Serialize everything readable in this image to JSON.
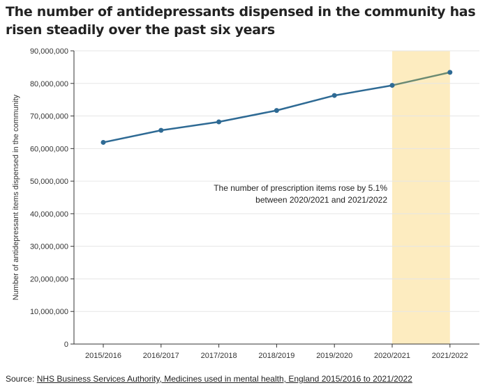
{
  "chart_data": {
    "type": "line",
    "title": "The number of antidepressants dispensed in the community has risen steadily over the past six years",
    "categories": [
      "2015/2016",
      "2016/2017",
      "2017/2018",
      "2018/2019",
      "2019/2020",
      "2020/2021",
      "2021/2022"
    ],
    "series": [
      {
        "values": [
          61900000,
          65600000,
          68200000,
          71700000,
          76300000,
          79400000,
          83400000
        ]
      }
    ],
    "ylabel": "Number of antidepressant items dispensed in the community",
    "xlabel": "",
    "ylim": [
      0,
      90000000
    ],
    "yticks": [
      0,
      10000000,
      20000000,
      30000000,
      40000000,
      50000000,
      60000000,
      70000000,
      80000000,
      90000000
    ],
    "ytick_labels": [
      "0",
      "10,000,000",
      "20,000,000",
      "30,000,000",
      "40,000,000",
      "50,000,000",
      "60,000,000",
      "70,000,000",
      "80,000,000",
      "90,000,000"
    ],
    "highlight": {
      "from": "2020/2021",
      "to": "2021/2022",
      "color": "#fdecc0"
    },
    "annotation": [
      "The number of prescription items rose by 5.1%",
      "between 2020/2021 and 2021/2022"
    ],
    "line_color": "#2e6a94",
    "highlight_line_color": "#6b8a72",
    "grid": true
  },
  "source": {
    "prefix": "Source: ",
    "link_text": "NHS Business Services Authority, Medicines used in mental health, England 2015/2016 to 2021/2022"
  }
}
